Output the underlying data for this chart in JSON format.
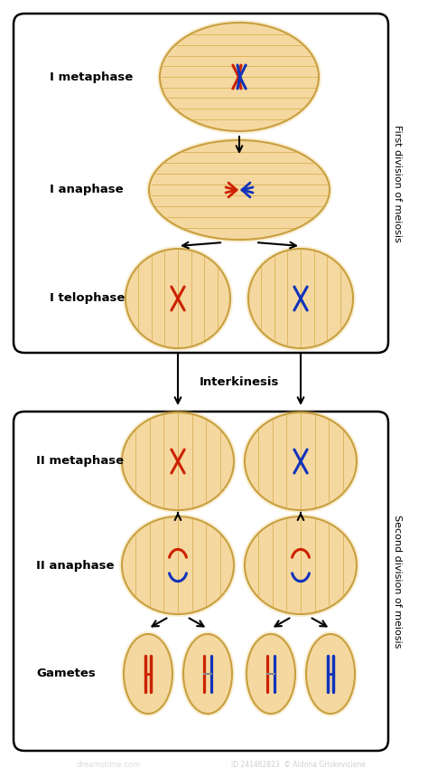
{
  "bg_color": "#ffffff",
  "cell_fill": "#f5d8a0",
  "cell_edge": "#c8a040",
  "cell_fill_light": "#f8e8c0",
  "red_chrom": "#cc2200",
  "blue_chrom": "#1133bb",
  "spindle_color": "#d4a840",
  "box_color": "#111111",
  "label_fontsize": 9.5,
  "side_label_fontsize": 8,
  "interkinesis_fontsize": 9.5,
  "phases_top": [
    "I metaphase",
    "I anaphase",
    "I telophase"
  ],
  "phases_bottom": [
    "II metaphase",
    "II anaphase",
    "Gametes"
  ],
  "side_label_top": "First division of meiosis",
  "side_label_bottom": "Second division of meiosis",
  "interkinesis_label": "Interkinesis"
}
